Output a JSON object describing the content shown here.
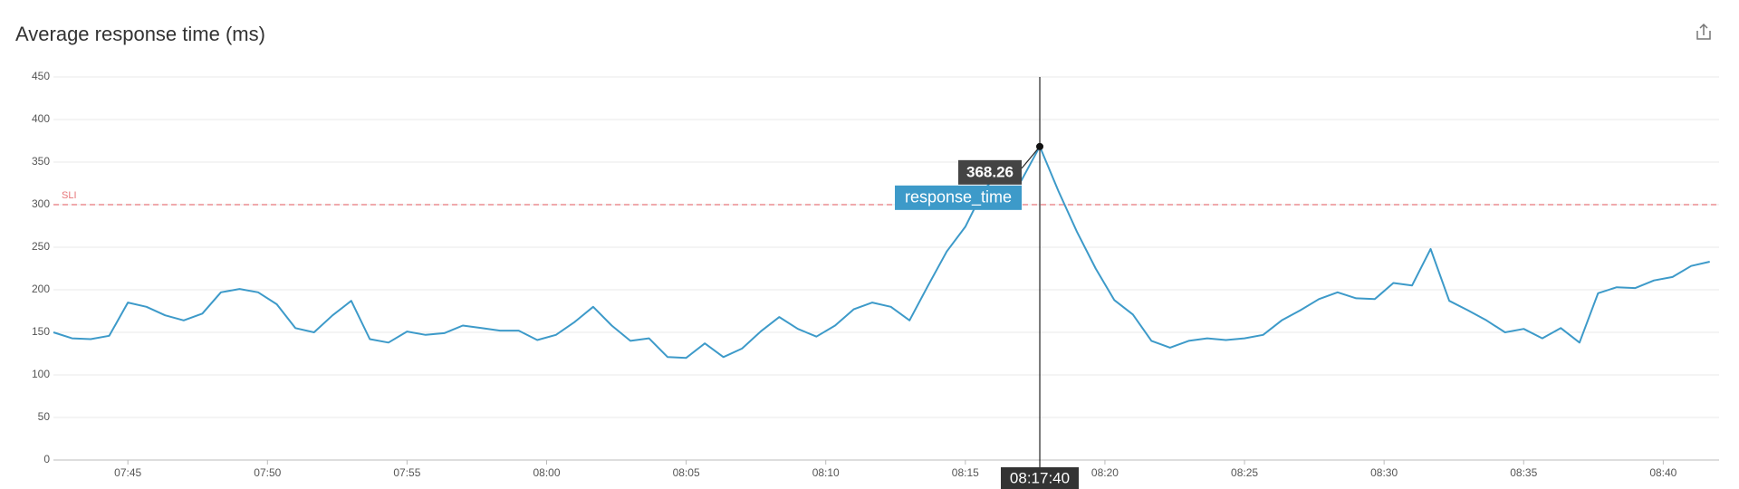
{
  "chart_data": {
    "type": "line",
    "title": "Average response time (ms)",
    "x": [
      "07:42:20",
      "07:43:00",
      "07:43:40",
      "07:44:20",
      "07:45:00",
      "07:45:40",
      "07:46:20",
      "07:47:00",
      "07:47:40",
      "07:48:20",
      "07:49:00",
      "07:49:40",
      "07:50:20",
      "07:51:00",
      "07:51:40",
      "07:52:20",
      "07:53:00",
      "07:53:40",
      "07:54:20",
      "07:55:00",
      "07:55:40",
      "07:56:20",
      "07:57:00",
      "07:57:40",
      "07:58:20",
      "07:59:00",
      "07:59:40",
      "08:00:20",
      "08:01:00",
      "08:01:40",
      "08:02:20",
      "08:03:00",
      "08:03:40",
      "08:04:20",
      "08:05:00",
      "08:05:40",
      "08:06:20",
      "08:07:00",
      "08:07:40",
      "08:08:20",
      "08:09:00",
      "08:09:40",
      "08:10:20",
      "08:11:00",
      "08:11:40",
      "08:12:20",
      "08:13:00",
      "08:13:40",
      "08:14:20",
      "08:15:00",
      "08:15:40",
      "08:16:20",
      "08:17:00",
      "08:17:40",
      "08:18:20",
      "08:19:00",
      "08:19:40",
      "08:20:20",
      "08:21:00",
      "08:21:40",
      "08:22:20",
      "08:23:00",
      "08:23:40",
      "08:24:20",
      "08:25:00",
      "08:25:40",
      "08:26:20",
      "08:27:00",
      "08:27:40",
      "08:28:20",
      "08:29:00",
      "08:29:40",
      "08:30:20",
      "08:31:00",
      "08:31:40",
      "08:32:20",
      "08:33:00",
      "08:33:40",
      "08:34:20",
      "08:35:00",
      "08:35:40",
      "08:36:20",
      "08:37:00",
      "08:37:40",
      "08:38:20",
      "08:39:00",
      "08:39:40",
      "08:40:20",
      "08:41:00",
      "08:41:40"
    ],
    "series": [
      {
        "name": "response_time",
        "color": "#3d9ac9",
        "values": [
          150,
          143,
          142,
          146,
          185,
          180,
          170,
          164,
          172,
          197,
          201,
          197,
          183,
          155,
          150,
          170,
          187,
          142,
          138,
          151,
          147,
          149,
          158,
          155,
          152,
          152,
          141,
          147,
          162,
          180,
          158,
          140,
          143,
          121,
          120,
          137,
          121,
          131,
          151,
          168,
          154,
          145,
          158,
          177,
          185,
          180,
          164,
          205,
          245,
          274,
          318,
          340,
          328,
          368.26,
          316,
          268,
          225,
          188,
          171,
          140,
          132,
          140,
          143,
          141,
          143,
          147,
          164,
          176,
          189,
          197,
          190,
          189,
          208,
          205,
          248,
          187,
          176,
          164,
          150,
          154,
          143,
          155,
          138,
          196,
          203,
          202,
          211,
          215,
          228,
          233
        ]
      }
    ],
    "xlim": [
      "07:42:20",
      "08:42:00"
    ],
    "xticks": [
      {
        "value": "07:45:00",
        "label": "07:45"
      },
      {
        "value": "07:50:00",
        "label": "07:50"
      },
      {
        "value": "07:55:00",
        "label": "07:55"
      },
      {
        "value": "08:00:00",
        "label": "08:00"
      },
      {
        "value": "08:05:00",
        "label": "08:05"
      },
      {
        "value": "08:10:00",
        "label": "08:10"
      },
      {
        "value": "08:15:00",
        "label": "08:15"
      },
      {
        "value": "08:20:00",
        "label": "08:20"
      },
      {
        "value": "08:25:00",
        "label": "08:25"
      },
      {
        "value": "08:30:00",
        "label": "08:30"
      },
      {
        "value": "08:35:00",
        "label": "08:35"
      },
      {
        "value": "08:40:00",
        "label": "08:40"
      }
    ],
    "ylim": [
      0,
      450
    ],
    "yticks": [
      0,
      50,
      100,
      150,
      200,
      250,
      300,
      350,
      400,
      450
    ],
    "grid": true,
    "threshold": {
      "label": "SLI",
      "value": 300,
      "color": "#e8767a"
    },
    "hover_index": 53
  }
}
